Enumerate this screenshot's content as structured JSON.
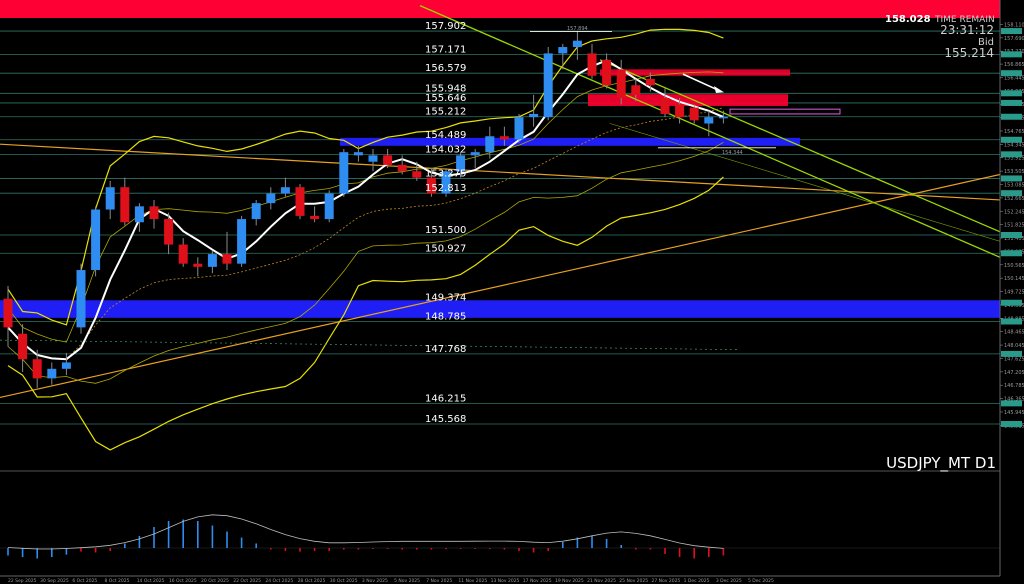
{
  "chart_data": {
    "type": "candlestick",
    "symbol_label": "USDJPY_MT D1",
    "info": {
      "price": "158.028",
      "time_remain_label": "TIME REMAIN",
      "time_remain": "23:31:12",
      "bid_label": "Bid",
      "bid": "155.214"
    },
    "ylim": [
      144.5,
      158.5
    ],
    "level_labels": [
      "157.902",
      "157.171",
      "156.579",
      "155.948",
      "155.646",
      "155.212",
      "154.489",
      "154.032",
      "153.275",
      "152.813",
      "151.500",
      "150.927",
      "149.374",
      "148.785",
      "147.768",
      "146.215",
      "145.568"
    ],
    "axis_ticks": [
      "158.110",
      "157.690",
      "157.270",
      "156.865",
      "156.445",
      "156.025",
      "155.605",
      "155.185",
      "154.765",
      "154.345",
      "153.925",
      "153.505",
      "153.085",
      "152.665",
      "152.245",
      "151.825",
      "151.405",
      "150.985",
      "150.565",
      "150.145",
      "149.725",
      "149.305",
      "148.885",
      "148.465",
      "148.045",
      "147.625",
      "147.205",
      "146.785",
      "146.365",
      "145.945",
      "145.525"
    ],
    "dates": [
      "22 Sep 2025",
      "30 Sep 2025",
      "6 Oct 2025",
      "8 Oct 2025",
      "14 Oct 2025",
      "16 Oct 2025",
      "20 Oct 2025",
      "22 Oct 2025",
      "24 Oct 2025",
      "28 Oct 2025",
      "30 Oct 2025",
      "3 Nov 2025",
      "5 Nov 2025",
      "7 Nov 2025",
      "11 Nov 2025",
      "13 Nov 2025",
      "17 Nov 2025",
      "19 Nov 2025",
      "21 Nov 2025",
      "25 Nov 2025",
      "27 Nov 2025",
      "1 Dec 2025",
      "3 Dec 2025",
      "5 Dec 2025"
    ],
    "annotations": [
      "157.894",
      "154.344"
    ],
    "candles": [
      {
        "o": 149.5,
        "h": 149.9,
        "l": 148.0,
        "c": 148.6
      },
      {
        "o": 148.4,
        "h": 148.7,
        "l": 147.2,
        "c": 147.6
      },
      {
        "o": 147.6,
        "h": 147.9,
        "l": 146.7,
        "c": 147.0
      },
      {
        "o": 147.0,
        "h": 147.5,
        "l": 146.8,
        "c": 147.3
      },
      {
        "o": 147.3,
        "h": 147.8,
        "l": 147.1,
        "c": 147.5
      },
      {
        "o": 148.6,
        "h": 150.6,
        "l": 148.4,
        "c": 150.4
      },
      {
        "o": 150.4,
        "h": 152.4,
        "l": 150.2,
        "c": 152.3
      },
      {
        "o": 152.3,
        "h": 153.2,
        "l": 152.0,
        "c": 153.0
      },
      {
        "o": 153.0,
        "h": 153.3,
        "l": 151.8,
        "c": 151.9
      },
      {
        "o": 151.9,
        "h": 152.5,
        "l": 151.6,
        "c": 152.4
      },
      {
        "o": 152.4,
        "h": 152.6,
        "l": 151.7,
        "c": 152.0
      },
      {
        "o": 152.0,
        "h": 152.2,
        "l": 150.9,
        "c": 151.2
      },
      {
        "o": 151.2,
        "h": 151.4,
        "l": 150.5,
        "c": 150.6
      },
      {
        "o": 150.6,
        "h": 150.8,
        "l": 150.2,
        "c": 150.5
      },
      {
        "o": 150.5,
        "h": 151.0,
        "l": 150.3,
        "c": 150.9
      },
      {
        "o": 150.9,
        "h": 151.6,
        "l": 150.4,
        "c": 150.6
      },
      {
        "o": 150.6,
        "h": 152.1,
        "l": 150.5,
        "c": 152.0
      },
      {
        "o": 152.0,
        "h": 152.6,
        "l": 151.8,
        "c": 152.5
      },
      {
        "o": 152.5,
        "h": 153.0,
        "l": 152.3,
        "c": 152.8
      },
      {
        "o": 152.8,
        "h": 153.3,
        "l": 152.7,
        "c": 153.0
      },
      {
        "o": 153.0,
        "h": 153.1,
        "l": 152.0,
        "c": 152.1
      },
      {
        "o": 152.1,
        "h": 152.4,
        "l": 151.9,
        "c": 152.0
      },
      {
        "o": 152.0,
        "h": 152.9,
        "l": 151.9,
        "c": 152.8
      },
      {
        "o": 152.8,
        "h": 154.2,
        "l": 152.7,
        "c": 154.1
      },
      {
        "o": 154.0,
        "h": 154.3,
        "l": 153.8,
        "c": 154.1
      },
      {
        "o": 153.8,
        "h": 154.2,
        "l": 153.5,
        "c": 154.0
      },
      {
        "o": 154.0,
        "h": 154.2,
        "l": 153.6,
        "c": 153.7
      },
      {
        "o": 153.7,
        "h": 154.0,
        "l": 153.4,
        "c": 153.5
      },
      {
        "o": 153.5,
        "h": 153.8,
        "l": 153.2,
        "c": 153.3
      },
      {
        "o": 153.3,
        "h": 153.6,
        "l": 152.7,
        "c": 152.8
      },
      {
        "o": 152.8,
        "h": 153.6,
        "l": 152.7,
        "c": 153.5
      },
      {
        "o": 153.5,
        "h": 154.1,
        "l": 153.3,
        "c": 154.0
      },
      {
        "o": 154.0,
        "h": 154.2,
        "l": 153.6,
        "c": 154.1
      },
      {
        "o": 154.1,
        "h": 154.9,
        "l": 153.9,
        "c": 154.6
      },
      {
        "o": 154.6,
        "h": 154.9,
        "l": 154.3,
        "c": 154.5
      },
      {
        "o": 154.5,
        "h": 155.3,
        "l": 154.4,
        "c": 155.2
      },
      {
        "o": 155.2,
        "h": 155.9,
        "l": 154.9,
        "c": 155.3
      },
      {
        "o": 155.2,
        "h": 157.4,
        "l": 155.1,
        "c": 157.2
      },
      {
        "o": 157.2,
        "h": 157.5,
        "l": 156.7,
        "c": 157.4
      },
      {
        "o": 157.4,
        "h": 157.9,
        "l": 157.0,
        "c": 157.6
      },
      {
        "o": 157.2,
        "h": 157.5,
        "l": 156.4,
        "c": 156.5
      },
      {
        "o": 157.0,
        "h": 157.2,
        "l": 156.1,
        "c": 156.2
      },
      {
        "o": 156.7,
        "h": 157.0,
        "l": 155.6,
        "c": 155.8
      },
      {
        "o": 156.2,
        "h": 156.4,
        "l": 155.7,
        "c": 155.9
      },
      {
        "o": 156.4,
        "h": 156.6,
        "l": 156.0,
        "c": 156.2
      },
      {
        "o": 155.8,
        "h": 156.1,
        "l": 155.2,
        "c": 155.3
      },
      {
        "o": 155.6,
        "h": 155.8,
        "l": 155.0,
        "c": 155.2
      },
      {
        "o": 155.5,
        "h": 155.6,
        "l": 155.0,
        "c": 155.1
      },
      {
        "o": 155.0,
        "h": 155.4,
        "l": 154.6,
        "c": 155.2
      },
      {
        "o": 155.2,
        "h": 155.4,
        "l": 155.0,
        "c": 155.21
      }
    ],
    "histogram": [
      {
        "v": -0.25,
        "c": "b"
      },
      {
        "v": -0.3,
        "c": "b"
      },
      {
        "v": -0.35,
        "c": "b"
      },
      {
        "v": -0.3,
        "c": "b"
      },
      {
        "v": -0.22,
        "c": "b"
      },
      {
        "v": -0.12,
        "c": "r"
      },
      {
        "v": -0.15,
        "c": "r"
      },
      {
        "v": -0.1,
        "c": "r"
      },
      {
        "v": 0.15,
        "c": "b"
      },
      {
        "v": 0.4,
        "c": "b"
      },
      {
        "v": 0.7,
        "c": "b"
      },
      {
        "v": 0.9,
        "c": "b"
      },
      {
        "v": 0.95,
        "c": "b"
      },
      {
        "v": 0.9,
        "c": "b"
      },
      {
        "v": 0.75,
        "c": "b"
      },
      {
        "v": 0.55,
        "c": "b"
      },
      {
        "v": 0.35,
        "c": "b"
      },
      {
        "v": 0.15,
        "c": "b"
      },
      {
        "v": -0.05,
        "c": "r"
      },
      {
        "v": -0.1,
        "c": "r"
      },
      {
        "v": -0.12,
        "c": "r"
      },
      {
        "v": -0.1,
        "c": "r"
      },
      {
        "v": -0.1,
        "c": "r"
      },
      {
        "v": -0.05,
        "c": "r"
      },
      {
        "v": -0.05,
        "c": "r"
      },
      {
        "v": -0.03,
        "c": "r"
      },
      {
        "v": -0.03,
        "c": "r"
      },
      {
        "v": -0.05,
        "c": "r"
      },
      {
        "v": -0.05,
        "c": "r"
      },
      {
        "v": -0.05,
        "c": "r"
      },
      {
        "v": -0.04,
        "c": "r"
      },
      {
        "v": -0.03,
        "c": "r"
      },
      {
        "v": -0.03,
        "c": "r"
      },
      {
        "v": -0.03,
        "c": "r"
      },
      {
        "v": -0.05,
        "c": "r"
      },
      {
        "v": -0.1,
        "c": "r"
      },
      {
        "v": -0.15,
        "c": "r"
      },
      {
        "v": -0.1,
        "c": "r"
      },
      {
        "v": 0.2,
        "c": "b"
      },
      {
        "v": 0.35,
        "c": "b"
      },
      {
        "v": 0.4,
        "c": "b"
      },
      {
        "v": 0.3,
        "c": "b"
      },
      {
        "v": 0.1,
        "c": "b"
      },
      {
        "v": -0.05,
        "c": "r"
      },
      {
        "v": -0.05,
        "c": "r"
      },
      {
        "v": -0.2,
        "c": "r"
      },
      {
        "v": -0.3,
        "c": "r"
      },
      {
        "v": -0.35,
        "c": "r"
      },
      {
        "v": -0.3,
        "c": "r"
      },
      {
        "v": -0.25,
        "c": "r"
      }
    ],
    "colors": {
      "bull": "#2f8cf0",
      "bear": "#e0101a",
      "zone_blue": "#1f1ff5",
      "zone_red": "#ff0030",
      "bands": "#e8e000",
      "ma_white": "#ffffff",
      "trend_green": "#9bd600",
      "trend_orange": "#e8a020",
      "level_line": "#3a8a7a"
    }
  }
}
